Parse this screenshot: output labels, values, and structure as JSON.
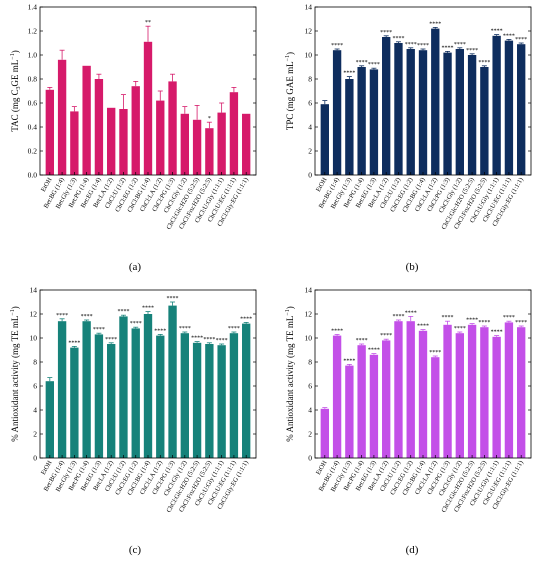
{
  "figure": {
    "panels": [
      "(a)",
      "(b)",
      "(c)",
      "(d)"
    ]
  },
  "chart_data": [
    {
      "panel": "(a)",
      "type": "bar",
      "ylabel": "TAC (mg C",
      "ylabel_sub": "3",
      "ylabel_tail": "GE mL",
      "ylabel_sup": "−1",
      "ylabel_close": ")",
      "ylim": [
        0.0,
        1.4
      ],
      "yticks": [
        "0.0",
        "0.2",
        "0.4",
        "0.6",
        "0.8",
        "1.0",
        "1.2",
        "1.4"
      ],
      "color": "#d61a6a",
      "grid": false,
      "categories": [
        "EtOH",
        "Bet:BG (1:4)",
        "Bet:Gly (1:3)",
        "Bet:PG (1:4)",
        "Bet:EG (1:4)",
        "Bet:LA (1:2)",
        "ChCl:U (1:2)",
        "ChCl:EG (1:2)",
        "ChCl:BG (1:4)",
        "ChCl:LA (1:2)",
        "ChCl:PG (1:3)",
        "ChCl:Gly (1:2)",
        "ChCl:Glc:H2O (5:2:5)",
        "ChCl:Fru:H2O (5:2:5)",
        "ChCl:U:Gly (1:1:1)",
        "ChCl:U:EG (1:1:1)",
        "ChCl:Gly:EG (1:1:1)"
      ],
      "values": [
        0.71,
        0.96,
        0.53,
        0.91,
        0.8,
        0.56,
        0.55,
        0.74,
        1.11,
        0.62,
        0.78,
        0.51,
        0.46,
        0.39,
        0.52,
        0.69,
        0.51
      ],
      "errors": [
        0.02,
        0.08,
        0.04,
        0.0,
        0.04,
        0.0,
        0.12,
        0.04,
        0.13,
        0.08,
        0.06,
        0.06,
        0.12,
        0.05,
        0.08,
        0.04,
        0.0
      ],
      "significance": [
        "",
        "",
        "",
        "",
        "",
        "",
        "",
        "",
        "**",
        "",
        "",
        "",
        "",
        "*",
        "",
        "",
        ""
      ]
    },
    {
      "panel": "(b)",
      "type": "bar",
      "ylabel": "TPC (mg GAE mL",
      "ylabel_sup": "−1",
      "ylabel_close": ")",
      "ylim": [
        0,
        14
      ],
      "yticks": [
        "0",
        "2",
        "4",
        "6",
        "8",
        "10",
        "12",
        "14"
      ],
      "color": "#0e2d5e",
      "grid": false,
      "categories": [
        "EtOH",
        "Bet:BG (1:4)",
        "Bet:Gly (1:3)",
        "Bet:PG (1:4)",
        "Bet:EG (1:3)",
        "Bet:LA (1:2)",
        "ChCl:U (1:2)",
        "ChCl:EG (1:2)",
        "ChCl:BG (1:4)",
        "ChCl:LA (1:2)",
        "ChCl:PG (1:3)",
        "ChCl:Gly (1:2)",
        "ChCl:Glc:H2O (5:2:5)",
        "ChCl:Fru:H2O (5:2:5)",
        "ChCl:U:Gly (1:1:1)",
        "ChCl:U:EG (1:1:1)",
        "ChCl:Gly:EG (1:1:1)"
      ],
      "values": [
        5.9,
        10.4,
        8.0,
        9.0,
        8.8,
        11.5,
        11.0,
        10.5,
        10.4,
        12.2,
        10.2,
        10.5,
        10.0,
        9.0,
        11.6,
        11.2,
        10.9
      ],
      "errors": [
        0.3,
        0.1,
        0.2,
        0.1,
        0.1,
        0.1,
        0.1,
        0.1,
        0.1,
        0.1,
        0.1,
        0.1,
        0.1,
        0.1,
        0.1,
        0.1,
        0.1
      ],
      "significance": [
        "",
        "****",
        "****",
        "****",
        "****",
        "****",
        "****",
        "****",
        "****",
        "****",
        "****",
        "****",
        "****",
        "****",
        "****",
        "****",
        "****"
      ]
    },
    {
      "panel": "(c)",
      "type": "bar",
      "ylabel": "% Antioxidant activity (mg TE mL",
      "ylabel_sup": "−1",
      "ylabel_close": ")",
      "ylim": [
        0,
        14
      ],
      "yticks": [
        "0",
        "2",
        "4",
        "6",
        "8",
        "10",
        "12",
        "14"
      ],
      "color": "#16827a",
      "grid": false,
      "categories": [
        "EtOH",
        "Bet:BG (1:4)",
        "Bet:Gly (1:3)",
        "Bet:PG (1:4)",
        "Bet:EG (1:3)",
        "Bet:LA (1:2)",
        "ChCl:U (1:2)",
        "ChCl:EG (1:2)",
        "ChCl:BG (1:4)",
        "ChCl:LA (1:2)",
        "ChCl:PG (1:3)",
        "ChCl:Gly (1:2)",
        "ChCl:Glc:H2O (5:2:5)",
        "ChCl:Fru:H2O (5:2:5)",
        "ChCl:U:Gly (1:1:1)",
        "ChCl:U:EG (1:1:1)",
        "ChCl:Gly:EG (1:1:1)"
      ],
      "values": [
        6.4,
        11.4,
        9.2,
        11.4,
        10.3,
        9.5,
        11.8,
        10.8,
        12.0,
        10.2,
        12.7,
        10.4,
        9.6,
        9.5,
        9.4,
        10.4,
        11.2
      ],
      "errors": [
        0.3,
        0.2,
        0.1,
        0.1,
        0.1,
        0.1,
        0.1,
        0.1,
        0.2,
        0.1,
        0.3,
        0.1,
        0.1,
        0.1,
        0.1,
        0.1,
        0.1
      ],
      "significance": [
        "",
        "****",
        "****",
        "****",
        "****",
        "****",
        "****",
        "****",
        "****",
        "****",
        "****",
        "****",
        "****",
        "****",
        "****",
        "****",
        "****"
      ]
    },
    {
      "panel": "(d)",
      "type": "bar",
      "ylabel": "% Antioxidant activity (mg TE mL",
      "ylabel_sup": "−1",
      "ylabel_close": ")",
      "ylim": [
        0,
        14
      ],
      "yticks": [
        "0",
        "2",
        "4",
        "6",
        "8",
        "10",
        "12",
        "14"
      ],
      "color": "#c350e8",
      "grid": false,
      "categories": [
        "EtOH",
        "Bet:BG (1:4)",
        "Bet:Gly (1:3)",
        "Bet:PG (1:4)",
        "Bet:EG (1:3)",
        "Bet:LA (1:2)",
        "ChCl:U (1:2)",
        "ChCl:EG (1:2)",
        "ChCl:BG (1:4)",
        "ChCl:LA (1:2)",
        "ChCl:PG (1:3)",
        "ChCl:Gly (1:2)",
        "ChCl:Glc:H2O (5:2:5)",
        "ChCl:Fru:H2O (5:2:5)",
        "ChCl:U:Gly (1:1:1)",
        "ChCl:U:EG (1:1:1)",
        "ChCl:Gly:EG (1:1:1)"
      ],
      "values": [
        4.1,
        10.2,
        7.7,
        9.4,
        8.6,
        9.8,
        11.4,
        11.4,
        10.6,
        8.4,
        11.1,
        10.4,
        11.1,
        10.9,
        10.1,
        11.3,
        10.9
      ],
      "errors": [
        0.1,
        0.1,
        0.1,
        0.1,
        0.1,
        0.1,
        0.1,
        0.4,
        0.1,
        0.1,
        0.3,
        0.1,
        0.1,
        0.1,
        0.1,
        0.1,
        0.1
      ],
      "significance": [
        "",
        "****",
        "****",
        "****",
        "****",
        "****",
        "****",
        "****",
        "****",
        "****",
        "****",
        "****",
        "****",
        "****",
        "****",
        "****",
        "****"
      ]
    }
  ]
}
